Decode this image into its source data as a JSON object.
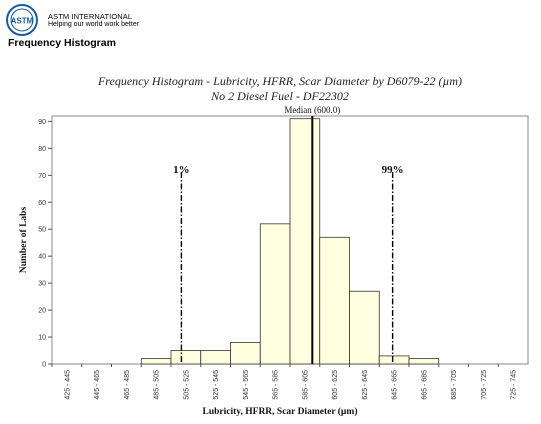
{
  "header": {
    "brand_name": "ASTM INTERNATIONAL",
    "tagline": "Helping our world work better",
    "logo_text": "ASTM",
    "brand_color": "#1a5aa6",
    "page_heading": "Frequency Histogram"
  },
  "chart_data": {
    "type": "bar",
    "title": "Frequency Histogram - Lubricity, HFRR, Scar Diameter by D6079-22 (µm)",
    "subtitle": "No 2 Diesel Fuel - DF22302",
    "xlabel": "Lubricity, HFRR, Scar Diameter (µm)",
    "ylabel": "Number of Labs",
    "categories": [
      "425 - 445",
      "445 - 465",
      "465 - 485",
      "485 - 505",
      "505 - 525",
      "525 - 545",
      "545 - 565",
      "565 - 585",
      "585 - 605",
      "605 - 625",
      "625 - 645",
      "645 - 665",
      "665 - 685",
      "685 - 705",
      "705 - 725",
      "725 - 745"
    ],
    "values": [
      0,
      0,
      0,
      2,
      5,
      5,
      8,
      52,
      91,
      47,
      27,
      3,
      2,
      0,
      0,
      0
    ],
    "ylim": [
      0,
      92
    ],
    "yticks": [
      0,
      10,
      20,
      30,
      40,
      50,
      60,
      70,
      80,
      90
    ],
    "bar_color": "#ffffe0",
    "grid": false,
    "reference_lines": [
      {
        "label": "1%",
        "x": 512.0,
        "style": "dash-dot"
      },
      {
        "label": "99%",
        "x": 654.0,
        "style": "dash-dot"
      },
      {
        "label": "Median (600.0)",
        "x": 600.0,
        "style": "solid"
      }
    ]
  }
}
